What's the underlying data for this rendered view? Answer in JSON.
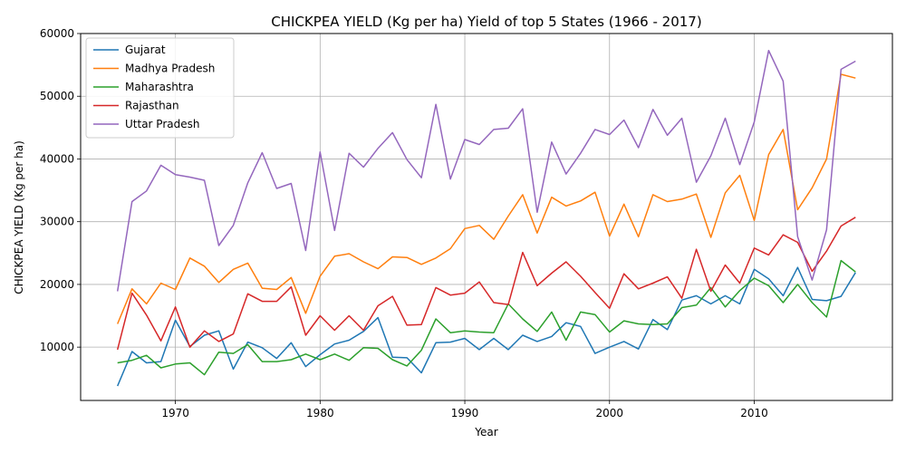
{
  "chart_data": {
    "type": "line",
    "title": "CHICKPEA YIELD (Kg per ha) Yield of top 5 States (1966 - 2017)",
    "xlabel": "Year",
    "ylabel": "CHICKPEA YIELD (Kg per ha)",
    "xlim": [
      1963.45,
      2019.55
    ],
    "ylim": [
      1500,
      60000
    ],
    "xticks": [
      1970,
      1980,
      1990,
      2000,
      2010
    ],
    "yticks": [
      10000,
      20000,
      30000,
      40000,
      50000,
      60000
    ],
    "grid": true,
    "legend_position": "top-left",
    "x": [
      1966,
      1967,
      1968,
      1969,
      1970,
      1971,
      1972,
      1973,
      1974,
      1975,
      1976,
      1977,
      1978,
      1979,
      1980,
      1981,
      1982,
      1983,
      1984,
      1985,
      1986,
      1987,
      1988,
      1989,
      1990,
      1991,
      1992,
      1993,
      1994,
      1995,
      1996,
      1997,
      1998,
      1999,
      2000,
      2001,
      2002,
      2003,
      2004,
      2005,
      2006,
      2007,
      2008,
      2009,
      2010,
      2011,
      2012,
      2013,
      2014,
      2015,
      2016,
      2017
    ],
    "series": [
      {
        "name": "Gujarat",
        "color": "#1f77b4",
        "values": [
          3800,
          9300,
          7500,
          7700,
          14300,
          10100,
          11900,
          12600,
          6500,
          10800,
          9900,
          8200,
          10700,
          6900,
          8800,
          10500,
          11100,
          12500,
          14700,
          8400,
          8300,
          5900,
          10700,
          10800,
          11400,
          9600,
          11400,
          9600,
          11900,
          10900,
          11700,
          13900,
          13300,
          9000,
          10000,
          10900,
          9700,
          14400,
          12800,
          17500,
          18200,
          16900,
          18200,
          16900,
          22400,
          20900,
          18200,
          22700,
          17600,
          17400,
          18100,
          21900
        ]
      },
      {
        "name": "Madhya Pradesh",
        "color": "#ff7f0e",
        "values": [
          13700,
          19300,
          16900,
          20200,
          19200,
          24200,
          22900,
          20300,
          22400,
          23400,
          19400,
          19200,
          21100,
          15400,
          21300,
          24500,
          24900,
          23600,
          22500,
          24400,
          24300,
          23200,
          24200,
          25700,
          28900,
          29400,
          27200,
          30900,
          34300,
          28200,
          33900,
          32500,
          33300,
          34700,
          27700,
          32800,
          27600,
          34300,
          33200,
          33600,
          34400,
          27500,
          34600,
          37400,
          30200,
          40700,
          44700,
          31900,
          35400,
          40000,
          53500,
          52900
        ]
      },
      {
        "name": "Maharashtra",
        "color": "#2ca02c",
        "values": [
          7500,
          7900,
          8700,
          6700,
          7300,
          7500,
          5600,
          9200,
          9000,
          10400,
          7700,
          7700,
          8000,
          8900,
          8000,
          8900,
          7900,
          9900,
          9800,
          8000,
          7000,
          9500,
          14500,
          12300,
          12600,
          12400,
          12300,
          16900,
          14500,
          12500,
          15600,
          11100,
          15600,
          15200,
          12400,
          14200,
          13700,
          13600,
          13700,
          16300,
          16700,
          19500,
          16400,
          19000,
          21000,
          19800,
          17100,
          20000,
          17100,
          14800,
          23800,
          22000
        ]
      },
      {
        "name": "Rajasthan",
        "color": "#d62728",
        "values": [
          9600,
          18600,
          15100,
          11000,
          16400,
          10000,
          12600,
          10900,
          12100,
          18500,
          17300,
          17300,
          19600,
          11900,
          15000,
          12700,
          15000,
          12700,
          16600,
          18100,
          13500,
          13600,
          19500,
          18300,
          18600,
          20400,
          17100,
          16800,
          25100,
          19800,
          21800,
          23600,
          21300,
          18700,
          16200,
          21700,
          19300,
          20200,
          21200,
          17800,
          25600,
          18900,
          23100,
          20200,
          25800,
          24700,
          27900,
          26700,
          22100,
          25300,
          29300,
          30700
        ]
      },
      {
        "name": "Uttar Pradesh",
        "color": "#9467bd",
        "values": [
          18900,
          33200,
          34900,
          39000,
          37500,
          37100,
          36600,
          26200,
          29400,
          36200,
          41000,
          35300,
          36100,
          25400,
          41100,
          28600,
          40900,
          38700,
          41700,
          44200,
          39900,
          37000,
          48700,
          36800,
          43100,
          42300,
          44700,
          44900,
          48000,
          31500,
          42700,
          37600,
          40900,
          44700,
          43900,
          46200,
          41800,
          47900,
          43800,
          46500,
          36300,
          40500,
          46500,
          39100,
          45900,
          57300,
          52400,
          27600,
          20700,
          28700,
          54300,
          55600
        ]
      }
    ]
  }
}
